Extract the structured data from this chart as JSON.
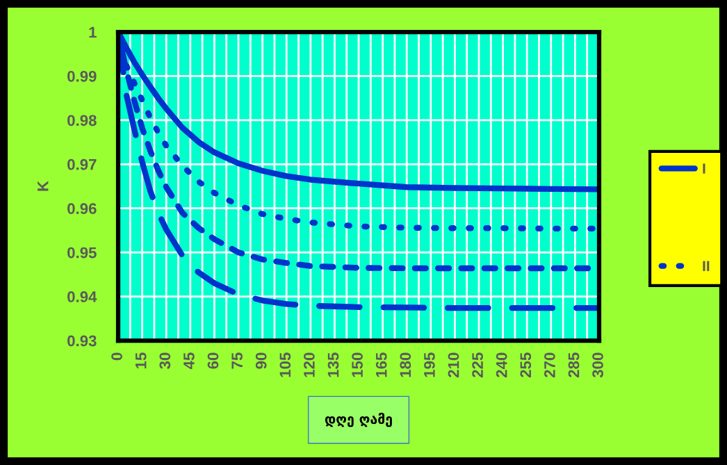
{
  "chart_data": {
    "type": "line",
    "xlabel": "დღე ღამე",
    "ylabel": "K",
    "x": [
      0,
      5,
      10,
      15,
      20,
      25,
      30,
      40,
      50,
      60,
      75,
      90,
      105,
      120,
      150,
      180,
      210,
      240,
      270,
      300
    ],
    "series": [
      {
        "name": "I",
        "color": "#0033cc",
        "line_style": "solid",
        "values": [
          1,
          0.9965,
          0.9932,
          0.9903,
          0.9876,
          0.985,
          0.9826,
          0.9783,
          0.9751,
          0.9727,
          0.9702,
          0.9685,
          0.9673,
          0.9665,
          0.9656,
          0.9648,
          0.9646,
          0.9645,
          0.9644,
          0.9643
        ]
      },
      {
        "name": "II",
        "color": "#0033cc",
        "line_style": "dotted",
        "values": [
          1,
          0.9925,
          0.9885,
          0.9845,
          0.9806,
          0.9772,
          0.9742,
          0.9697,
          0.9661,
          0.9635,
          0.9607,
          0.9587,
          0.9576,
          0.9568,
          0.9559,
          0.9556,
          0.9555,
          0.9555,
          0.9554,
          0.9554
        ]
      },
      {
        "color": "#0033cc",
        "line_style": "dashed",
        "values": [
          1,
          0.9915,
          0.9845,
          0.9782,
          0.9731,
          0.9686,
          0.9648,
          0.959,
          0.9556,
          0.953,
          0.95,
          0.9484,
          0.9476,
          0.9469,
          0.9465,
          0.9464,
          0.9464,
          0.9464,
          0.9464,
          0.9464
        ]
      },
      {
        "color": "#0033cc",
        "line_style": "long dashed",
        "values": [
          1,
          0.986,
          0.978,
          0.9705,
          0.964,
          0.959,
          0.9552,
          0.9493,
          0.9455,
          0.943,
          0.9405,
          0.9391,
          0.9383,
          0.9379,
          0.9376,
          0.9375,
          0.9374,
          0.9374,
          0.9374,
          0.9374
        ]
      }
    ],
    "xlim": [
      0,
      300
    ],
    "xticks": [
      0,
      {
        "value": 7.5,
        "label": null
      },
      15,
      {
        "value": 22.5,
        "label": null
      },
      30,
      {
        "value": 37.5,
        "label": null
      },
      45,
      {
        "value": 52.5,
        "label": null
      },
      60,
      {
        "value": 67.5,
        "label": null
      },
      75,
      {
        "value": 82.5,
        "label": null
      },
      90,
      {
        "value": 97.5,
        "label": null
      },
      105,
      {
        "value": 112.5,
        "label": null
      },
      120,
      {
        "value": 127.5,
        "label": null
      },
      135,
      {
        "value": 142.5,
        "label": null
      },
      150,
      {
        "value": 157.5,
        "label": null
      },
      165,
      {
        "value": 172.5,
        "label": null
      },
      180,
      {
        "value": 187.5,
        "label": null
      },
      195,
      {
        "value": 202.5,
        "label": null
      },
      210,
      {
        "value": 217.5,
        "label": null
      },
      225,
      {
        "value": 232.5,
        "label": null
      },
      240,
      {
        "value": 247.5,
        "label": null
      },
      255,
      {
        "value": 262.5,
        "label": null
      },
      270,
      {
        "value": 277.5,
        "label": null
      },
      285,
      {
        "value": 292.5,
        "label": null
      },
      300
    ],
    "ylim": [
      0.93,
      1
    ],
    "yticks": [
      0.93,
      0.94,
      0.95,
      0.96,
      0.97,
      0.98,
      0.99,
      1
    ],
    "grid": true,
    "legend": "right"
  }
}
